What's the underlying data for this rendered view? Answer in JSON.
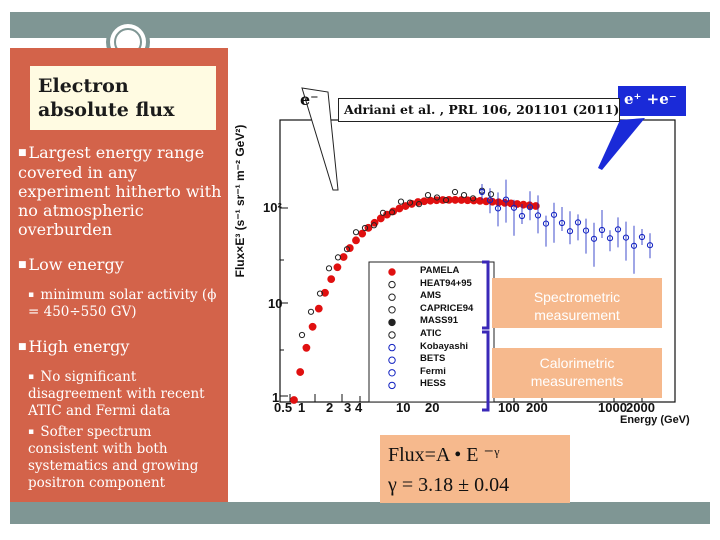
{
  "slide": {
    "title": "Electron absolute flux",
    "bullets": [
      {
        "text": "Largest energy range covered in any experiment hitherto with no atmospheric overburden"
      },
      {
        "text": "Low energy",
        "sub": [
          "minimum solar activity (ϕ = 450÷550 GV)"
        ]
      },
      {
        "text": "High energy",
        "sub": [
          "No significant disagreement with recent ATIC and Fermi data",
          "Softer spectrum consistent with both systematics and growing positron component"
        ]
      }
    ]
  },
  "plot": {
    "ylabel": "Flux×E³ (s⁻¹ sr⁻¹ m⁻² GeV²)",
    "xlabel": "Energy (GeV)",
    "xticks": [
      "0.5",
      "1",
      "2",
      "3",
      "4",
      "10",
      "20",
      "100",
      "200",
      "1000",
      "2000"
    ],
    "yticks": [
      "1",
      "10",
      "10²"
    ],
    "legend": [
      "PAMELA",
      "HEAT94+95",
      "AMS",
      "CAPRICE94",
      "MASS91",
      "ATIC",
      "Kobayashi",
      "BETS",
      "Fermi",
      "HESS"
    ],
    "colors": {
      "pamela": "#e01010",
      "fermi": "#1020c0",
      "hess": "#1020c0",
      "other": "#222222"
    }
  },
  "annotations": {
    "electron": "e⁻",
    "positron_electron": "e⁺ +e⁻",
    "reference": "Adriani et al. , PRL 106, 201101 (2011)",
    "spectrometric": "Spectrometric measurement",
    "calorimetric": "Calorimetric measurements",
    "flux_formula": "Flux=A • E ⁻ᵞ",
    "gamma_value": "γ = 3.18 ± 0.04"
  },
  "theme": {
    "panel": "#d3634a",
    "band": "#7f9694",
    "title_bg": "#fffbe2",
    "callout": "#f6b98d",
    "bracket": "#3a28b8"
  }
}
